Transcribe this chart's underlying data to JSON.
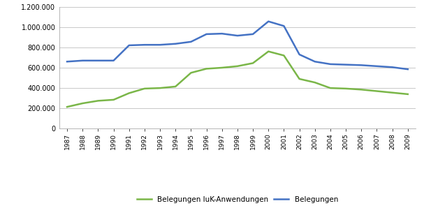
{
  "years": [
    1987,
    1988,
    1989,
    1990,
    1991,
    1992,
    1993,
    1994,
    1995,
    1996,
    1997,
    1998,
    1999,
    2000,
    2001,
    2002,
    2003,
    2004,
    2005,
    2006,
    2007,
    2008,
    2009
  ],
  "belegungen_iuk": [
    215000,
    250000,
    275000,
    285000,
    350000,
    395000,
    400000,
    415000,
    550000,
    590000,
    600000,
    615000,
    645000,
    760000,
    720000,
    490000,
    455000,
    400000,
    395000,
    385000,
    370000,
    355000,
    340000
  ],
  "belegungen": [
    660000,
    670000,
    670000,
    670000,
    820000,
    825000,
    825000,
    835000,
    855000,
    930000,
    935000,
    915000,
    930000,
    1055000,
    1010000,
    730000,
    660000,
    635000,
    630000,
    625000,
    615000,
    605000,
    585000
  ],
  "iuk_color": "#7ab648",
  "bel_color": "#4472c4",
  "ylim": [
    0,
    1200000
  ],
  "yticks": [
    0,
    200000,
    400000,
    600000,
    800000,
    1000000,
    1200000
  ],
  "ytick_labels": [
    "0",
    "200.000",
    "400.000",
    "600.000",
    "800.000",
    "1.000.000",
    "1.200.000"
  ],
  "legend_iuk": "Belegungen IuK-Anwendungen",
  "legend_bel": "Belegungen",
  "bg_color": "#ffffff",
  "grid_color": "#c8c8c8",
  "border_color": "#aaaaaa"
}
